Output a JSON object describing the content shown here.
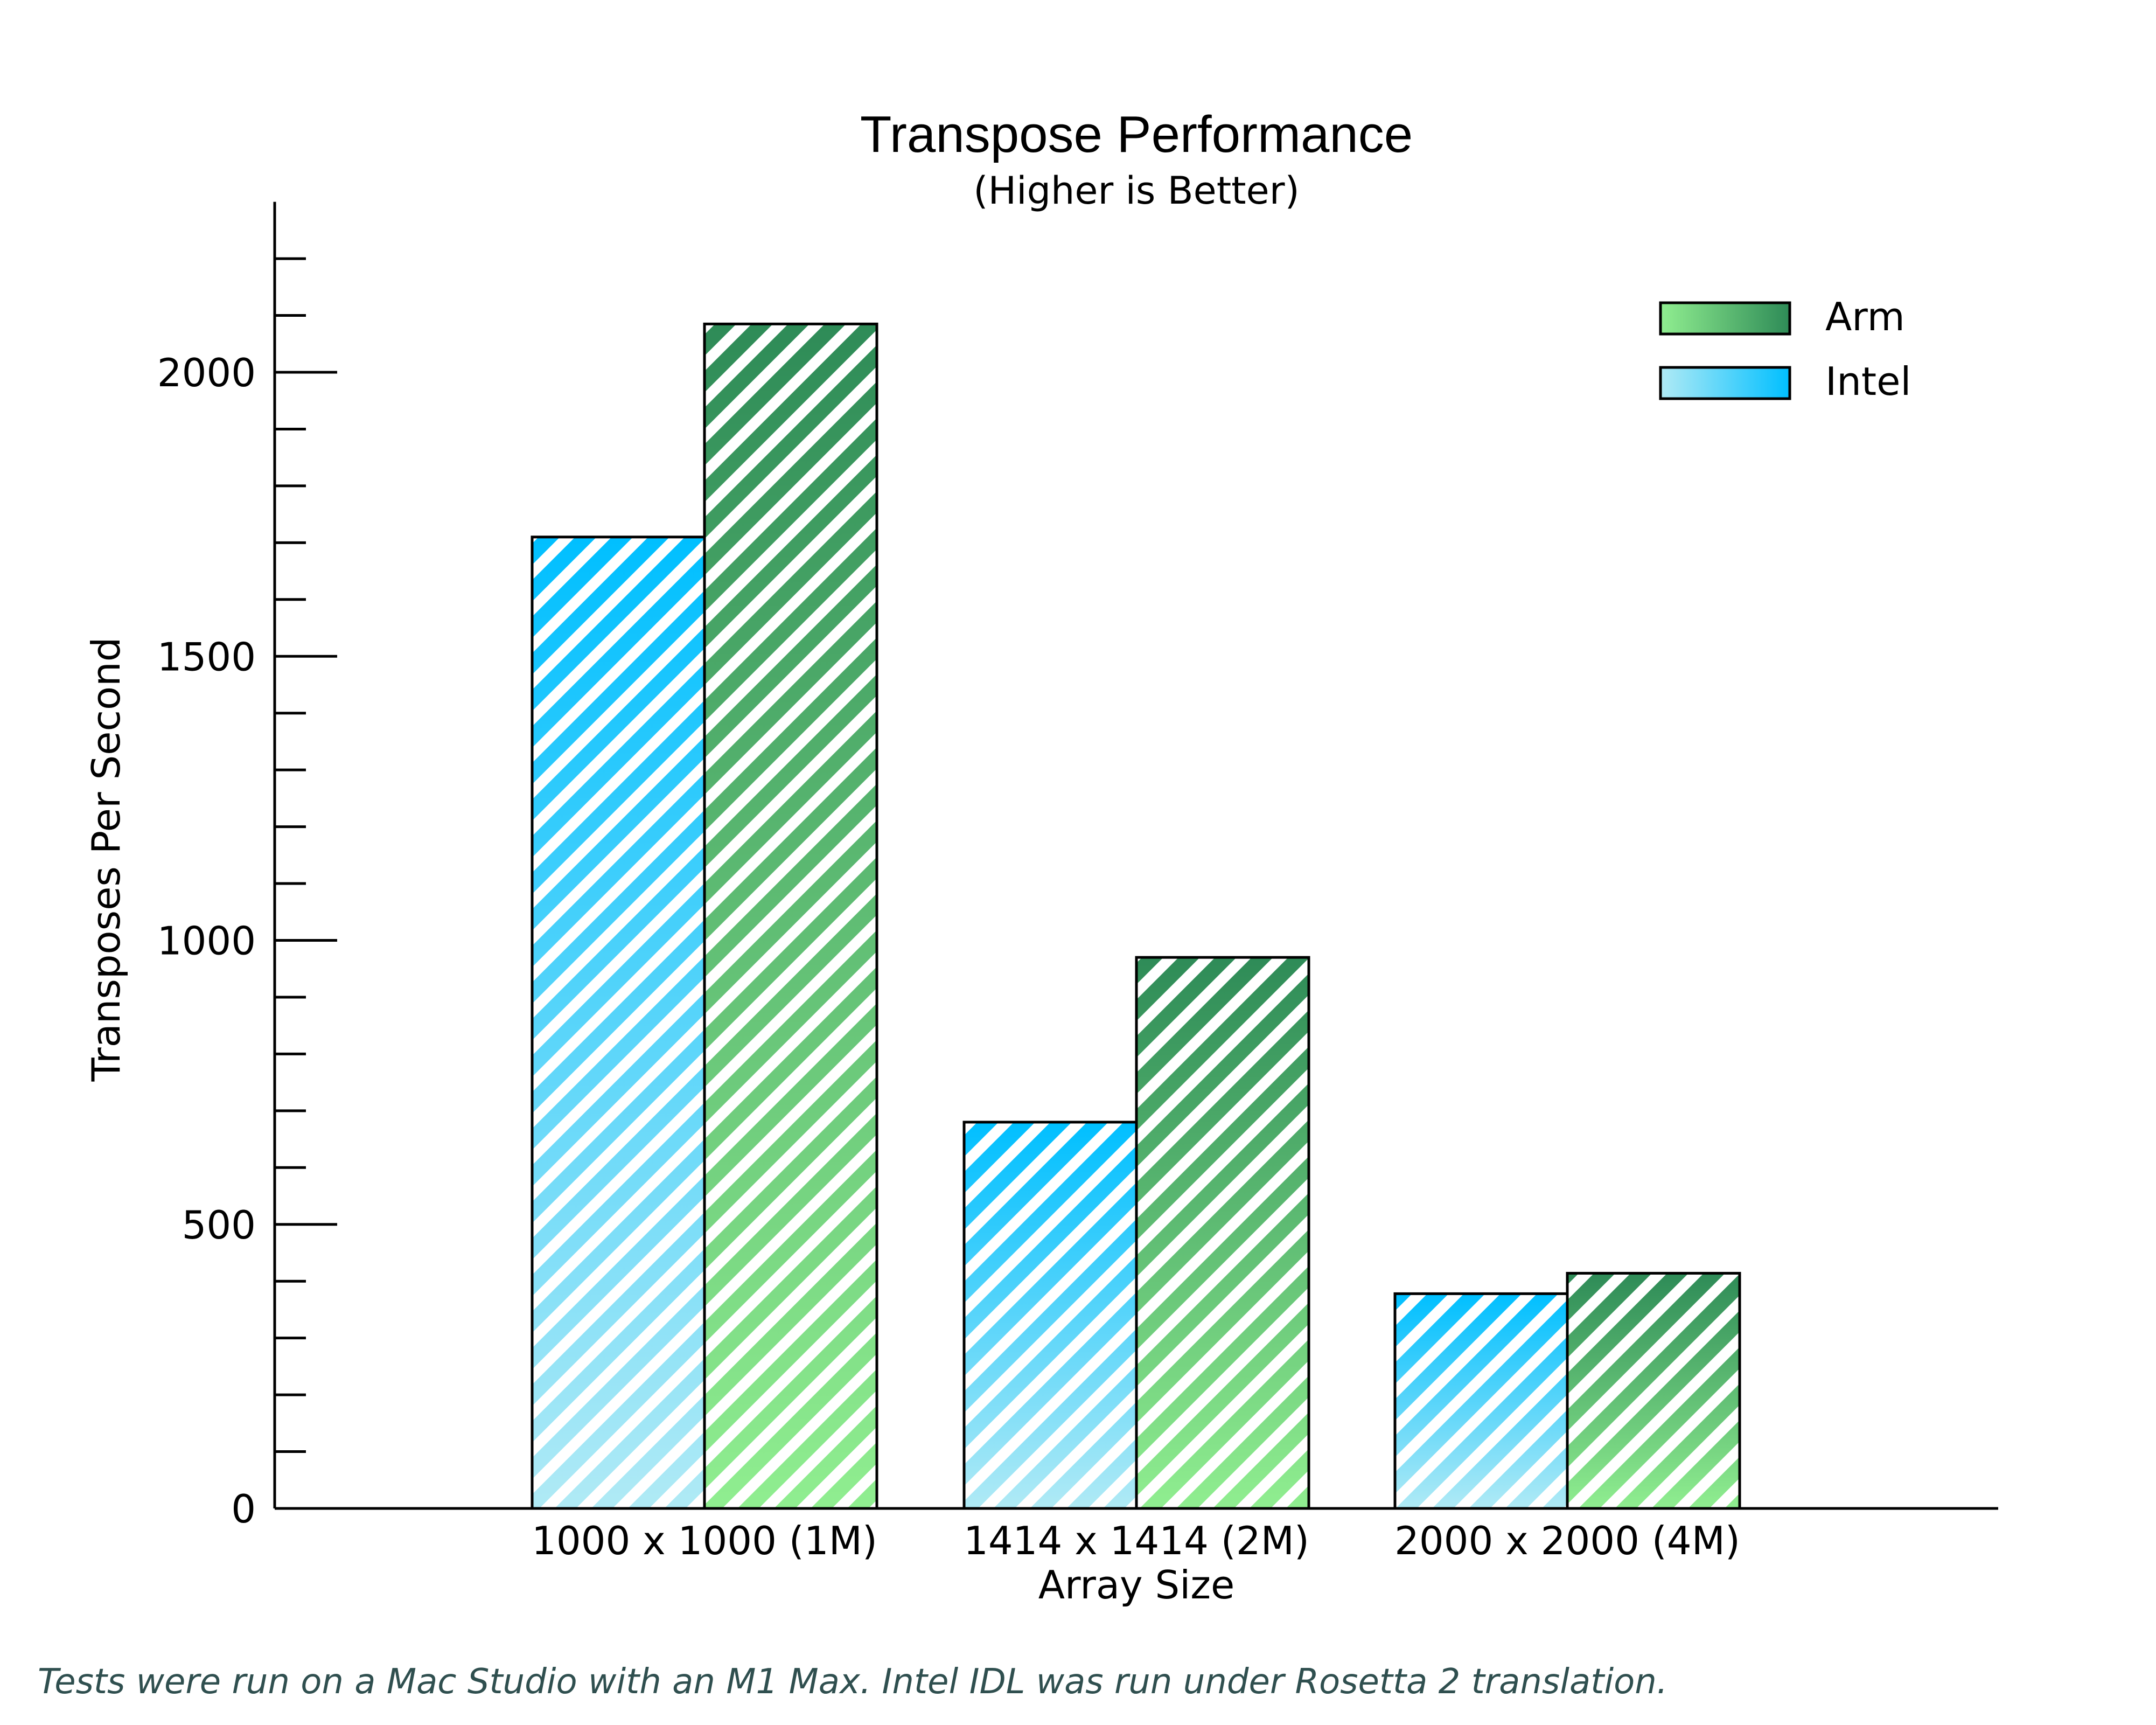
{
  "chart_data": {
    "type": "bar",
    "title": "Transpose Performance",
    "subtitle": "(Higher is Better)",
    "xlabel": "Array Size",
    "ylabel": "Transposes Per Second",
    "categories": [
      "1000 x 1000 (1M)",
      "1414 x 1414 (2M)",
      "2000 x 2000 (4M)"
    ],
    "series": [
      {
        "name": "Intel",
        "values": [
          1710,
          680,
          378
        ],
        "color_top": "#00bfff",
        "color_bottom": "#b0eaf5"
      },
      {
        "name": "Arm",
        "values": [
          2085,
          970,
          414
        ],
        "color_top": "#2e8b57",
        "color_bottom": "#90ee90"
      }
    ],
    "legend_order": [
      "Arm",
      "Intel"
    ],
    "legend_position": "top-right",
    "yticks": [
      0,
      500,
      1000,
      1500,
      2000
    ],
    "ylim": [
      0,
      2300
    ],
    "grid": false,
    "hatch": "diagonal-white"
  },
  "footnote": "Tests were run on a Mac Studio with an M1 Max.  Intel IDL was run under Rosetta 2 translation."
}
